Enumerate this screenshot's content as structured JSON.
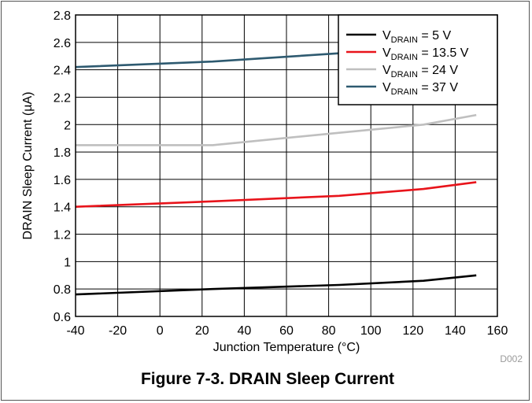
{
  "caption": "Figure 7-3. DRAIN Sleep Current",
  "figure_id": "D002",
  "chart_data": {
    "type": "line",
    "title": "",
    "xlabel": "Junction Temperature (°C)",
    "ylabel": "DRAIN Sleep Current (µA)",
    "xlim": [
      -40,
      160
    ],
    "ylim": [
      0.6,
      2.8
    ],
    "xticks": [
      -40,
      -20,
      0,
      20,
      40,
      60,
      80,
      100,
      120,
      140,
      160
    ],
    "yticks": [
      0.6,
      0.8,
      1,
      1.2,
      1.4,
      1.6,
      1.8,
      2,
      2.2,
      2.4,
      2.6,
      2.8
    ],
    "grid": true,
    "legend_position": "top-right",
    "series": [
      {
        "name_main": "V",
        "name_sub": "DRAIN",
        "name_rest": " = 5 V",
        "color": "#000000",
        "x": [
          -40,
          25,
          85,
          125,
          150
        ],
        "y": [
          0.76,
          0.8,
          0.83,
          0.86,
          0.9
        ]
      },
      {
        "name_main": "V",
        "name_sub": "DRAIN",
        "name_rest": " = 13.5 V",
        "color": "#e8141b",
        "x": [
          -40,
          25,
          85,
          125,
          150
        ],
        "y": [
          1.4,
          1.44,
          1.48,
          1.53,
          1.58
        ]
      },
      {
        "name_main": "V",
        "name_sub": "DRAIN",
        "name_rest": " = 24 V",
        "color": "#bfbfbf",
        "x": [
          -40,
          25,
          85,
          125,
          150
        ],
        "y": [
          1.85,
          1.85,
          1.94,
          2.0,
          2.07
        ]
      },
      {
        "name_main": "V",
        "name_sub": "DRAIN",
        "name_rest": " = 37 V",
        "color": "#2e5a70",
        "x": [
          -40,
          25,
          85,
          125,
          150
        ],
        "y": [
          2.42,
          2.46,
          2.52,
          2.57,
          2.6
        ]
      }
    ]
  }
}
